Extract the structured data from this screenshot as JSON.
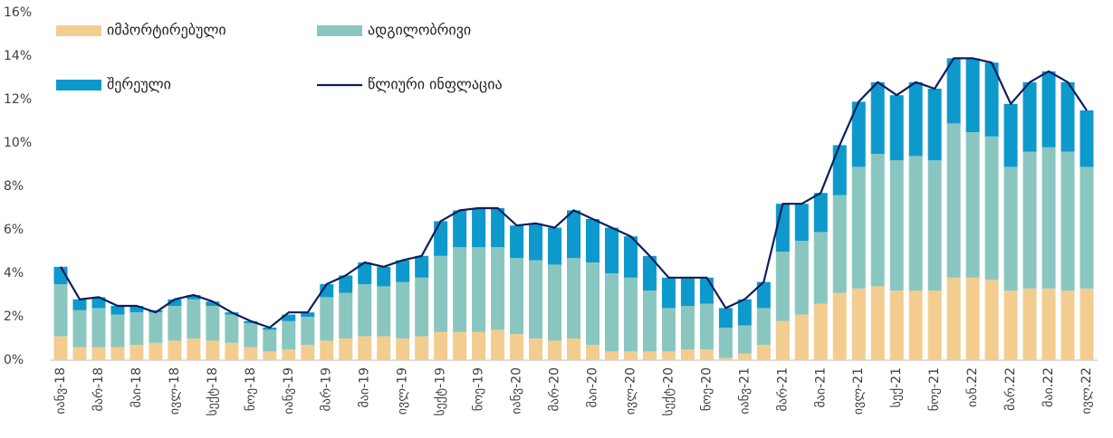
{
  "chart_data": {
    "type": "stacked_bar_line",
    "categories": [
      "იანვ-18",
      null,
      "მარ-18",
      null,
      "მაი-18",
      null,
      "ივლ-18",
      null,
      "სექტ-18",
      null,
      "ნოე-18",
      null,
      "იანვ-19",
      null,
      "მარ-19",
      null,
      "მაი-19",
      null,
      "ივლ-19",
      null,
      "სექტ-19",
      null,
      "ნოე-19",
      null,
      "იანვ-20",
      null,
      "მარ-20",
      null,
      "მაი-20",
      null,
      "ივლ-20",
      null,
      "სექტ-20",
      null,
      "ნოე-20",
      null,
      "იანვ-21",
      null,
      "მარ-21",
      null,
      "მაი-21",
      null,
      "ივლ-21",
      null,
      "სექ-21",
      null,
      "ნოე-21",
      null,
      "იან.22",
      null,
      "მარ.22",
      null,
      "მაი.22",
      null,
      "ივლ.22"
    ],
    "series": [
      {
        "name": "იმპორტირებული",
        "color": "#f3cd8f",
        "values": [
          1.1,
          0.6,
          0.6,
          0.6,
          0.7,
          0.8,
          0.9,
          1.0,
          0.9,
          0.8,
          0.6,
          0.4,
          0.5,
          0.7,
          0.9,
          1.0,
          1.1,
          1.1,
          1.0,
          1.1,
          1.3,
          1.3,
          1.3,
          1.4,
          1.2,
          1.0,
          0.9,
          1.0,
          0.7,
          0.4,
          0.4,
          0.4,
          0.4,
          0.5,
          0.5,
          0.1,
          0.3,
          0.7,
          1.8,
          2.1,
          2.6,
          3.1,
          3.3,
          3.4,
          3.2,
          3.2,
          3.2,
          3.8,
          3.8,
          3.7,
          3.2,
          3.3,
          3.3,
          3.2,
          3.3
        ]
      },
      {
        "name": "ადგილობრივი",
        "color": "#8ac6c0",
        "values": [
          2.4,
          1.7,
          1.8,
          1.5,
          1.5,
          1.4,
          1.6,
          1.8,
          1.6,
          1.3,
          1.1,
          1.0,
          1.3,
          1.3,
          2.0,
          2.1,
          2.4,
          2.3,
          2.6,
          2.7,
          3.5,
          3.9,
          3.9,
          3.8,
          3.5,
          3.6,
          3.5,
          3.7,
          3.8,
          3.6,
          3.4,
          2.8,
          2.0,
          2.0,
          2.1,
          1.4,
          1.3,
          1.7,
          3.2,
          3.4,
          3.3,
          4.5,
          5.6,
          6.1,
          6.0,
          6.2,
          6.0,
          7.1,
          6.7,
          6.6,
          5.7,
          6.3,
          6.5,
          6.4,
          5.6
        ]
      },
      {
        "name": "შერეული",
        "color": "#0e99cc",
        "values": [
          0.8,
          0.5,
          0.5,
          0.4,
          0.3,
          0.1,
          0.3,
          0.2,
          0.2,
          0.1,
          0.1,
          0.1,
          0.3,
          0.2,
          0.6,
          0.8,
          1.0,
          0.9,
          1.0,
          1.0,
          1.6,
          1.7,
          1.8,
          1.8,
          1.5,
          1.7,
          1.7,
          2.2,
          2.0,
          2.1,
          1.9,
          1.6,
          1.4,
          1.3,
          1.2,
          0.9,
          1.2,
          1.2,
          2.2,
          1.7,
          1.8,
          2.3,
          3.0,
          3.3,
          3.0,
          3.4,
          3.3,
          3.0,
          3.4,
          3.4,
          2.9,
          3.2,
          3.5,
          3.2,
          2.6
        ]
      },
      {
        "name": "წლიური ინფლაცია",
        "color": "#0d1f5c",
        "kind": "line",
        "values": [
          4.3,
          2.8,
          2.9,
          2.5,
          2.5,
          2.2,
          2.8,
          3.0,
          2.7,
          2.2,
          1.8,
          1.5,
          2.2,
          2.2,
          3.5,
          3.9,
          4.5,
          4.3,
          4.6,
          4.8,
          6.4,
          6.9,
          7.0,
          7.0,
          6.2,
          6.3,
          6.1,
          6.9,
          6.5,
          6.1,
          5.7,
          4.8,
          3.8,
          3.8,
          3.8,
          2.4,
          2.8,
          3.6,
          7.2,
          7.2,
          7.7,
          9.9,
          11.9,
          12.8,
          12.2,
          12.8,
          12.5,
          13.9,
          13.9,
          13.7,
          11.8,
          12.8,
          13.3,
          12.8,
          11.5
        ]
      }
    ],
    "ylim": [
      0,
      16
    ],
    "yticks": [
      {
        "value": 0,
        "label": "0%"
      },
      {
        "value": 2,
        "label": "2%"
      },
      {
        "value": 4,
        "label": "4%"
      },
      {
        "value": 6,
        "label": "6%"
      },
      {
        "value": 8,
        "label": "8%"
      },
      {
        "value": 10,
        "label": "10%"
      },
      {
        "value": 12,
        "label": "12%"
      },
      {
        "value": 14,
        "label": "14%"
      },
      {
        "value": 16,
        "label": "16%"
      }
    ]
  }
}
